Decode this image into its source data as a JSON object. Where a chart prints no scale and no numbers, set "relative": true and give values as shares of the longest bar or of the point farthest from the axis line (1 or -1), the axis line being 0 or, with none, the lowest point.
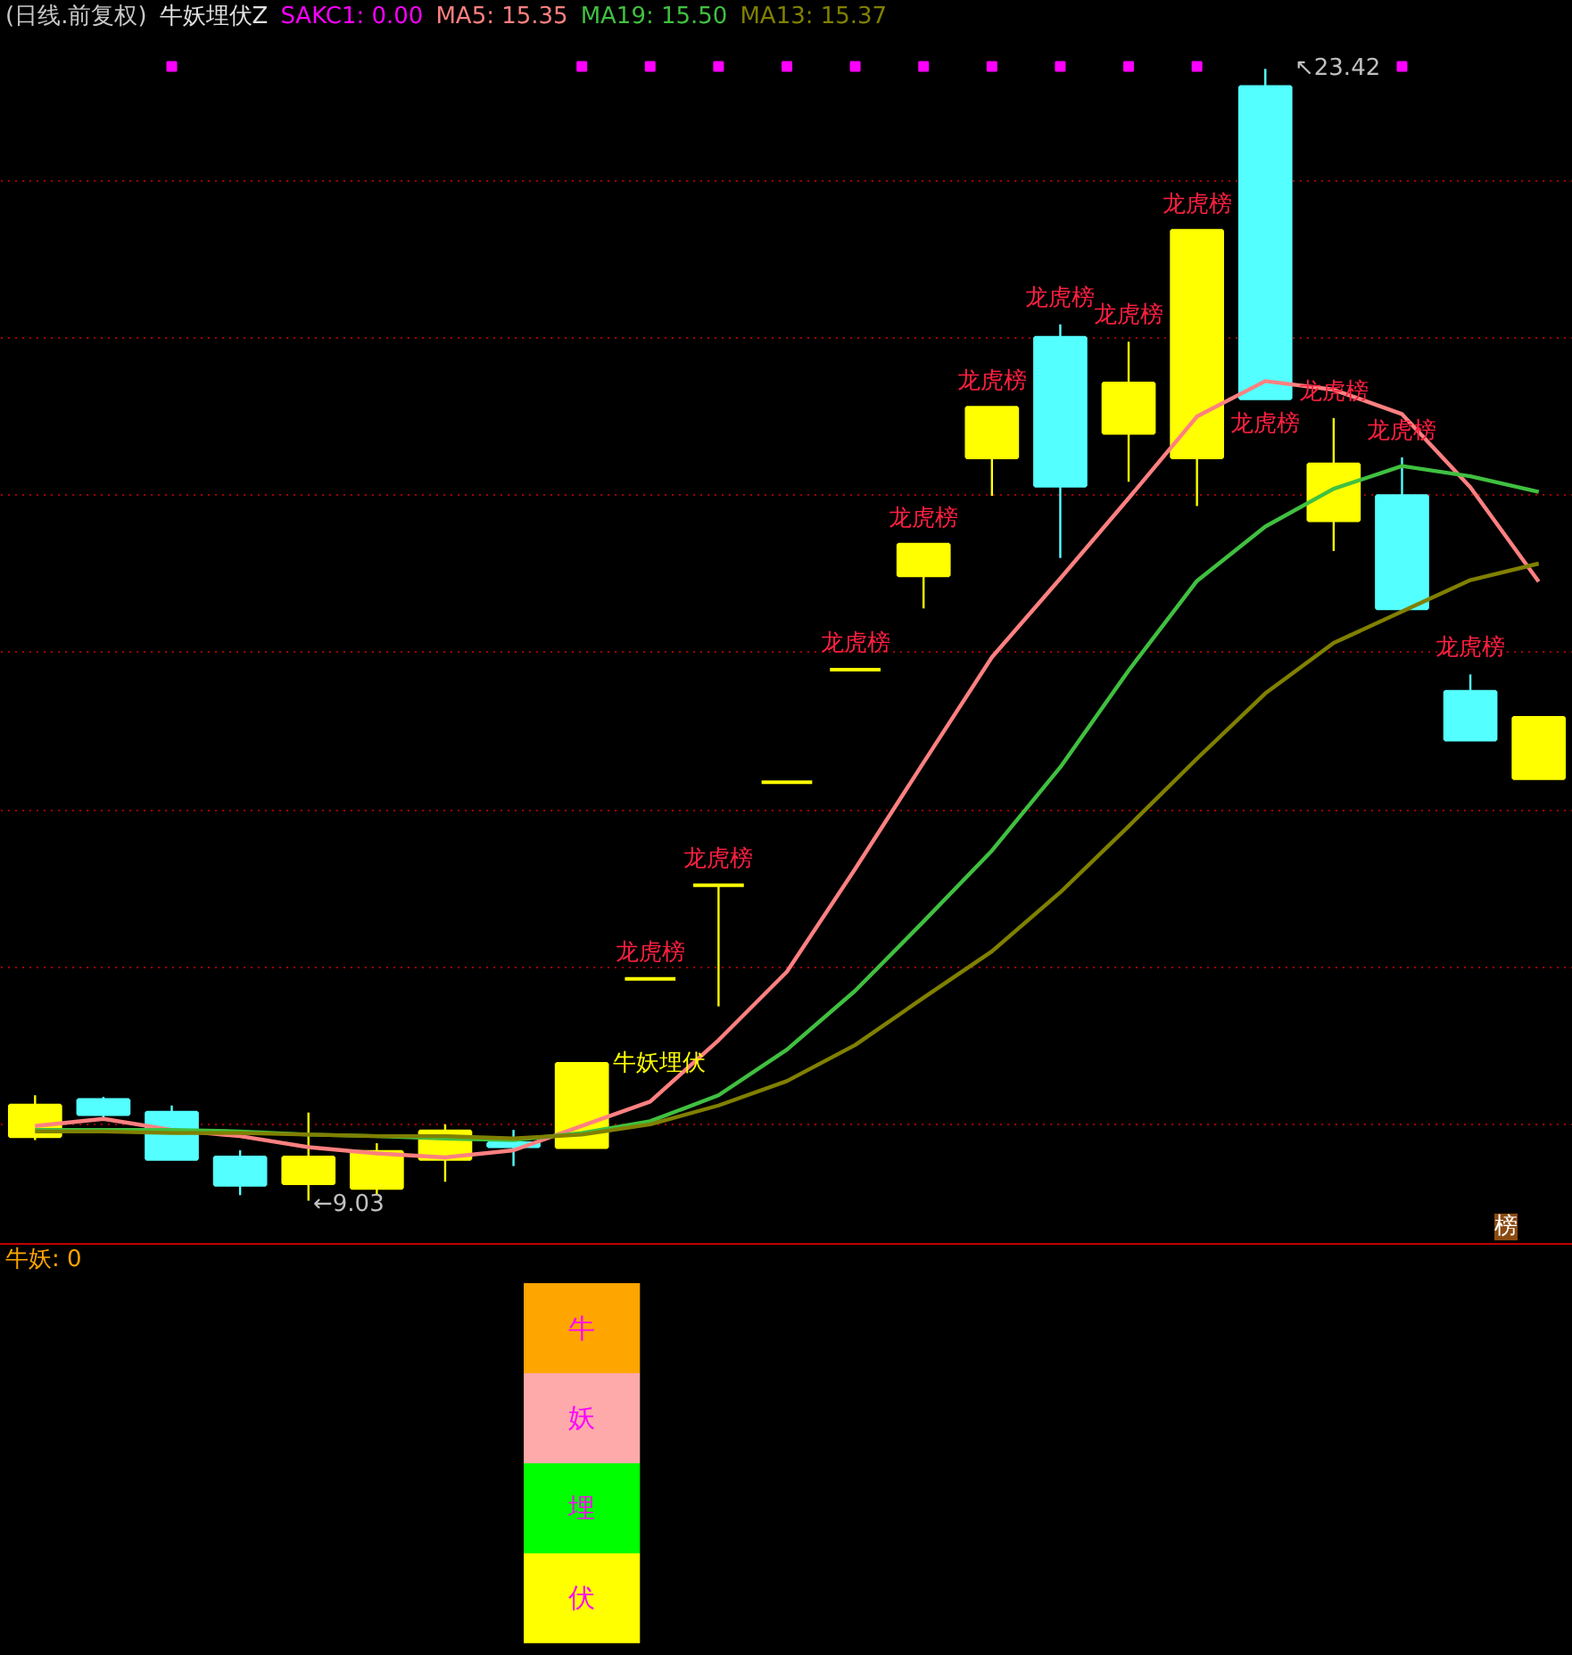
{
  "chart_data": [
    {
      "type": "candlestick",
      "title": "(日线.前复权)",
      "subtitle": "牛妖埋伏Z",
      "categories": [
        null,
        null,
        null,
        null,
        null,
        null,
        null,
        null,
        null,
        null,
        null,
        null,
        null,
        null,
        null,
        null,
        null,
        null,
        null,
        null,
        null,
        null,
        null
      ],
      "ohlc": [
        [
          9.85,
          10.37,
          9.8,
          10.24
        ],
        [
          10.31,
          10.35,
          10.07,
          10.13
        ],
        [
          10.15,
          10.24,
          9.56,
          9.56
        ],
        [
          9.58,
          9.67,
          9.1,
          9.23
        ],
        [
          9.25,
          10.15,
          9.03,
          9.58
        ],
        [
          9.19,
          9.76,
          9.1,
          9.65
        ],
        [
          9.56,
          10.0,
          9.27,
          9.91
        ],
        [
          9.76,
          9.93,
          9.47,
          9.72
        ],
        [
          9.71,
          10.77,
          9.71,
          10.77
        ],
        [
          11.85,
          11.85,
          11.85,
          11.85
        ],
        [
          13.04,
          13.04,
          11.5,
          13.04
        ],
        [
          14.35,
          14.35,
          14.35,
          14.35
        ],
        [
          15.78,
          15.78,
          15.78,
          15.78
        ],
        [
          16.98,
          17.37,
          16.56,
          17.37
        ],
        [
          18.48,
          19.11,
          17.99,
          19.11
        ],
        [
          20.0,
          20.17,
          17.2,
          18.12
        ],
        [
          18.79,
          19.95,
          18.17,
          19.42
        ],
        [
          18.48,
          21.36,
          17.86,
          21.36
        ],
        [
          23.19,
          23.42,
          19.23,
          19.23
        ],
        [
          17.68,
          18.98,
          17.29,
          18.39
        ],
        [
          17.99,
          18.48,
          16.56,
          16.56
        ],
        [
          15.5,
          15.72,
          14.89,
          14.89
        ],
        [
          14.4,
          15.17,
          14.4,
          15.17
        ]
      ],
      "colors": [
        "#ffff00",
        "#54ffff",
        "#54ffff",
        "#54ffff",
        "#ffff00",
        "#ffff00",
        "#ffff00",
        "#54ffff",
        "#ffff00",
        "#ffff00",
        "#ffff00",
        "#ffff00",
        "#ffff00",
        "#ffff00",
        "#ffff00",
        "#54ffff",
        "#ffff00",
        "#ffff00",
        "#54ffff",
        "#ffff00",
        "#54ffff",
        "#54ffff",
        "#ffff00"
      ],
      "value_labels": [
        null,
        null,
        null,
        null,
        null,
        null,
        null,
        null,
        null,
        "龙虎榜",
        "龙虎榜",
        null,
        "龙虎榜",
        "龙虎榜",
        "龙虎榜",
        "龙虎榜",
        "龙虎榜",
        "龙虎榜",
        "龙虎榜",
        "龙虎榜",
        "龙虎榜",
        "龙虎榜",
        null
      ],
      "series": [
        {
          "name": "SAKC1: 0.00",
          "type": "scatter",
          "marker": "square",
          "color": "#ff00ff",
          "values": [
            null,
            null,
            23.45,
            null,
            null,
            null,
            null,
            null,
            23.45,
            23.45,
            23.45,
            23.45,
            23.45,
            23.45,
            23.45,
            23.45,
            23.45,
            23.45,
            null,
            null,
            23.45,
            null,
            null
          ]
        },
        {
          "name": "MA5: 15.35",
          "type": "line",
          "color": "#ff8080",
          "values": [
            9.98,
            10.07,
            9.93,
            9.85,
            9.71,
            9.63,
            9.58,
            9.67,
            9.98,
            10.29,
            11.07,
            11.94,
            13.25,
            14.6,
            15.94,
            16.94,
            17.96,
            19.0,
            19.45,
            19.34,
            19.03,
            18.1,
            16.9
          ]
        },
        {
          "name": "MA19: 15.50",
          "type": "line",
          "color": "#40c040",
          "values": [
            9.93,
            9.93,
            9.93,
            9.91,
            9.87,
            9.85,
            9.82,
            9.8,
            9.89,
            10.04,
            10.37,
            10.95,
            11.7,
            12.58,
            13.48,
            14.54,
            15.77,
            16.91,
            17.6,
            18.08,
            18.37,
            18.24,
            18.04
          ]
        },
        {
          "name": "MA13: 15.37",
          "type": "line",
          "color": "#808000",
          "values": [
            9.91,
            9.91,
            9.89,
            9.89,
            9.87,
            9.85,
            9.85,
            9.82,
            9.87,
            10.0,
            10.24,
            10.55,
            11.01,
            11.61,
            12.2,
            12.95,
            13.79,
            14.65,
            15.48,
            16.12,
            16.52,
            16.92,
            17.13
          ]
        }
      ],
      "annotations": [
        "↖23.42",
        "←9.03",
        "牛妖埋伏",
        "榜"
      ],
      "ylim": [
        8.48,
        23.83
      ],
      "yticks": [
        {
          "value": 10,
          "label": null
        },
        {
          "value": 12,
          "label": null
        },
        {
          "value": 14,
          "label": null
        },
        {
          "value": 16,
          "label": null
        },
        {
          "value": 18,
          "label": null
        },
        {
          "value": 20,
          "label": null
        },
        {
          "value": 22,
          "label": null
        }
      ],
      "grid": "y",
      "legend": "top left",
      "tick_labels": false
    },
    {
      "type": "bar",
      "title": "牛妖: 0",
      "categories": [
        null,
        null,
        null,
        null,
        null,
        null,
        null,
        null,
        null,
        null,
        null,
        null,
        null,
        null,
        null,
        null,
        null,
        null,
        null,
        null,
        null,
        null,
        null
      ],
      "stacked": true,
      "relative": true,
      "tick_labels": false,
      "series": [
        {
          "name": "伏",
          "color": "#ffff00",
          "values": [
            null,
            null,
            null,
            null,
            null,
            null,
            null,
            null,
            0.25,
            null,
            null,
            null,
            null,
            null,
            null,
            null,
            null,
            null,
            null,
            null,
            null,
            null,
            null
          ]
        },
        {
          "name": "埋",
          "color": "#00ff00",
          "values": [
            null,
            null,
            null,
            null,
            null,
            null,
            null,
            null,
            0.25,
            null,
            null,
            null,
            null,
            null,
            null,
            null,
            null,
            null,
            null,
            null,
            null,
            null,
            null
          ]
        },
        {
          "name": "妖",
          "color": "#ffaaaa",
          "values": [
            null,
            null,
            null,
            null,
            null,
            null,
            null,
            null,
            0.25,
            null,
            null,
            null,
            null,
            null,
            null,
            null,
            null,
            null,
            null,
            null,
            null,
            null,
            null
          ]
        },
        {
          "name": "牛",
          "color": "#ffa500",
          "values": [
            null,
            null,
            null,
            null,
            null,
            null,
            null,
            null,
            0.25,
            null,
            null,
            null,
            null,
            null,
            null,
            null,
            null,
            null,
            null,
            null,
            null,
            null,
            null
          ]
        }
      ]
    }
  ]
}
